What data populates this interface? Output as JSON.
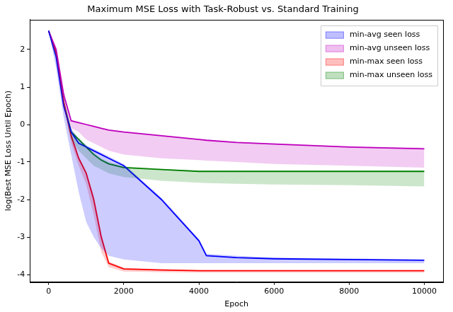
{
  "chart_data": {
    "type": "line",
    "title": "Maximum MSE Loss with Task-Robust vs. Standard Training",
    "x_label": "Epoch",
    "y_label": "log(Best MSE Loss Until Epoch)",
    "x": [
      0,
      200,
      400,
      600,
      800,
      1000,
      1200,
      1400,
      1600,
      2000,
      3000,
      4000,
      4200,
      5000,
      6000,
      8000,
      10000
    ],
    "series": [
      {
        "name": "min-avg seen loss",
        "color": "#0000ff",
        "values": [
          2.5,
          1.8,
          0.5,
          -0.2,
          -0.5,
          -0.6,
          -0.7,
          -0.8,
          -0.9,
          -1.1,
          -2.0,
          -3.1,
          -3.5,
          -3.55,
          -3.58,
          -3.6,
          -3.62
        ],
        "lower": [
          2.5,
          1.5,
          0.2,
          -0.8,
          -1.8,
          -2.6,
          -3.0,
          -3.3,
          -3.5,
          -3.6,
          -3.7,
          -3.7,
          -3.7,
          -3.7,
          -3.7,
          -3.7,
          -3.7
        ],
        "upper": [
          2.5,
          1.85,
          0.55,
          -0.1,
          -0.4,
          -0.55,
          -0.65,
          -0.75,
          -0.85,
          -1.05,
          -1.95,
          -3.05,
          -3.45,
          -3.5,
          -3.55,
          -3.57,
          -3.6
        ]
      },
      {
        "name": "min-avg unseen loss",
        "color": "#bf00bf",
        "values": [
          2.5,
          2.0,
          0.8,
          0.1,
          0.05,
          0.0,
          -0.05,
          -0.1,
          -0.15,
          -0.2,
          -0.3,
          -0.4,
          -0.42,
          -0.48,
          -0.52,
          -0.6,
          -0.65
        ],
        "lower": [
          2.5,
          1.8,
          0.5,
          -0.1,
          -0.2,
          -0.4,
          -0.5,
          -0.6,
          -0.7,
          -0.8,
          -0.9,
          -0.95,
          -0.96,
          -1.0,
          -1.05,
          -1.1,
          -1.15
        ],
        "upper": [
          2.5,
          2.05,
          0.85,
          0.12,
          0.07,
          0.02,
          -0.03,
          -0.08,
          -0.13,
          -0.18,
          -0.28,
          -0.38,
          -0.4,
          -0.46,
          -0.5,
          -0.58,
          -0.62
        ]
      },
      {
        "name": "min-max seen loss",
        "color": "#ff0000",
        "values": [
          2.5,
          1.9,
          0.6,
          -0.3,
          -0.9,
          -1.3,
          -2.0,
          -3.0,
          -3.7,
          -3.85,
          -3.88,
          -3.9,
          -3.9,
          -3.9,
          -3.9,
          -3.9,
          -3.9
        ],
        "lower": [
          2.5,
          1.8,
          0.5,
          -0.5,
          -1.1,
          -1.6,
          -2.4,
          -3.4,
          -3.8,
          -3.92,
          -3.94,
          -3.95,
          -3.95,
          -3.95,
          -3.95,
          -3.95,
          -3.95
        ],
        "upper": [
          2.5,
          1.95,
          0.65,
          -0.25,
          -0.85,
          -1.25,
          -1.9,
          -2.9,
          -3.65,
          -3.82,
          -3.86,
          -3.88,
          -3.88,
          -3.88,
          -3.88,
          -3.88,
          -3.88
        ]
      },
      {
        "name": "min-max unseen loss",
        "color": "#008000",
        "values": [
          2.5,
          1.9,
          0.6,
          -0.2,
          -0.4,
          -0.6,
          -0.8,
          -0.95,
          -1.05,
          -1.15,
          -1.2,
          -1.25,
          -1.25,
          -1.25,
          -1.25,
          -1.25,
          -1.25
        ],
        "lower": [
          2.5,
          1.8,
          0.5,
          -0.4,
          -0.7,
          -0.9,
          -1.1,
          -1.2,
          -1.3,
          -1.4,
          -1.5,
          -1.55,
          -1.56,
          -1.58,
          -1.6,
          -1.62,
          -1.65
        ],
        "upper": [
          2.5,
          1.95,
          0.65,
          -0.15,
          -0.35,
          -0.55,
          -0.75,
          -0.9,
          -1.0,
          -1.12,
          -1.18,
          -1.23,
          -1.23,
          -1.23,
          -1.23,
          -1.23,
          -1.23
        ]
      }
    ],
    "xlim": [
      -500,
      10500
    ],
    "ylim": [
      -4.2,
      2.8
    ],
    "xticks": [
      0,
      2000,
      4000,
      6000,
      8000,
      10000
    ],
    "yticks": [
      -4,
      -3,
      -2,
      -1,
      0,
      1,
      2
    ],
    "grid": false,
    "legend": "upper right"
  }
}
